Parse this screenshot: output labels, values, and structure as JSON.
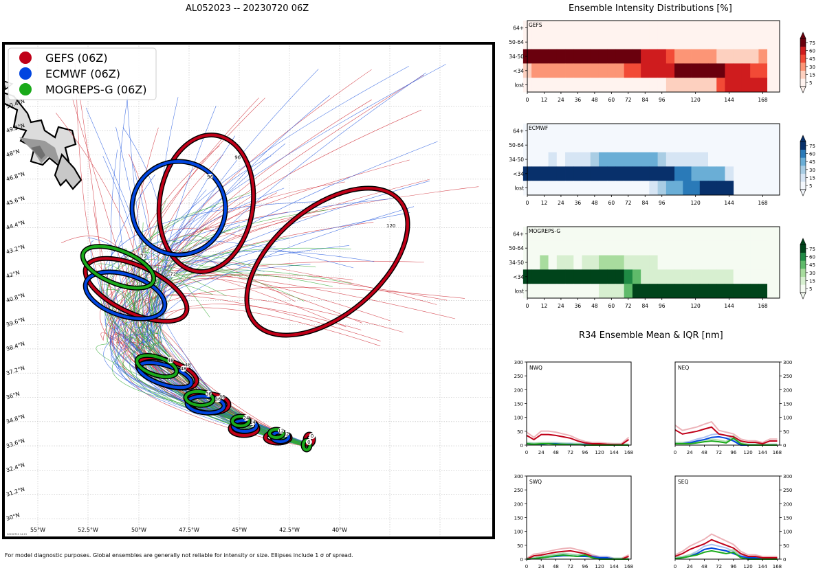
{
  "map": {
    "title": "AL052023 -- 20230720 06Z",
    "stamp": "20230720 14:13",
    "legend": [
      {
        "label": "GEFS (06Z)",
        "color": "#c00018"
      },
      {
        "label": "ECMWF (06Z)",
        "color": "#0045e0"
      },
      {
        "label": "MOGREPS-G (06Z)",
        "color": "#1aaa1a"
      }
    ],
    "lon_labels": [
      "55°W",
      "52.5°W",
      "50°W",
      "47.5°W",
      "45°W",
      "42.5°W",
      "40°W"
    ],
    "lat_labels": [
      "30°N",
      "31.2°N",
      "32.4°N",
      "33.6°N",
      "34.8°N",
      "36°N",
      "37.2°N",
      "38.4°N",
      "39.6°N",
      "40.8°N",
      "42°N",
      "43.2°N",
      "44.4°N",
      "45.6°N",
      "46.8°N",
      "48°N",
      "49.2°N",
      "50.4°N"
    ],
    "ellipse_labels": [
      "0",
      "12",
      "24",
      "36",
      "48",
      "72",
      "96",
      "120"
    ]
  },
  "footnote": "For model diagnostic purposes. Global ensembles are generally not reliable for intensity or size. Ellipses include 1 σ of spread.",
  "intensity": {
    "title": "Ensemble Intensity Distributions [%]",
    "rows": [
      "64+",
      "50-64",
      "34-50",
      "<34",
      "lost"
    ],
    "xticks": [
      "0",
      "12",
      "24",
      "36",
      "48",
      "60",
      "72",
      "84",
      "96",
      "120",
      "144",
      "168"
    ],
    "cbar_ticks": [
      "5",
      "15",
      "30",
      "45",
      "60",
      "75"
    ],
    "panels": [
      {
        "name": "GEFS",
        "palette": "red"
      },
      {
        "name": "ECMWF",
        "palette": "blue"
      },
      {
        "name": "MOGREPS-G",
        "palette": "green"
      }
    ]
  },
  "r34": {
    "title": "R34 Ensemble Mean & IQR [nm]",
    "yticks": [
      "0",
      "50",
      "100",
      "150",
      "200",
      "250",
      "300"
    ],
    "xticks": [
      "0",
      "24",
      "48",
      "72",
      "96",
      "120",
      "144",
      "168"
    ],
    "quadrants": [
      "NWQ",
      "NEQ",
      "SWQ",
      "SEQ"
    ]
  },
  "chart_data": [
    {
      "type": "heatmap",
      "title": "GEFS",
      "x_hours": [
        0,
        6,
        12,
        18,
        24,
        30,
        36,
        42,
        48,
        54,
        60,
        66,
        72,
        78,
        84,
        90,
        96,
        102,
        108,
        114,
        120,
        126,
        132,
        138,
        144,
        150,
        156,
        162,
        168
      ],
      "y_categories": [
        "64+",
        "50-64",
        "34-50",
        "<34",
        "lost"
      ],
      "values_pct": [
        [
          0,
          0,
          0,
          0,
          0,
          0,
          0,
          0,
          0,
          0,
          0,
          0,
          0,
          0,
          0,
          0,
          0,
          0,
          0,
          0,
          0,
          0,
          0,
          0,
          0,
          0,
          0,
          0,
          0
        ],
        [
          0,
          0,
          0,
          0,
          0,
          0,
          0,
          0,
          0,
          0,
          0,
          0,
          0,
          0,
          0,
          0,
          0,
          0,
          0,
          0,
          0,
          0,
          0,
          0,
          0,
          0,
          0,
          0,
          0
        ],
        [
          90,
          80,
          80,
          80,
          85,
          85,
          85,
          85,
          85,
          85,
          85,
          85,
          70,
          65,
          55,
          55,
          55,
          40,
          15,
          15,
          15,
          15,
          15,
          10,
          5,
          5,
          10,
          5,
          15
        ],
        [
          10,
          20,
          20,
          20,
          15,
          15,
          15,
          15,
          15,
          15,
          15,
          15,
          30,
          35,
          45,
          45,
          45,
          55,
          80,
          80,
          80,
          80,
          80,
          60,
          50,
          45,
          45,
          40,
          35
        ],
        [
          0,
          0,
          0,
          0,
          0,
          0,
          0,
          0,
          0,
          0,
          0,
          0,
          0,
          0,
          0,
          0,
          0,
          5,
          5,
          5,
          5,
          5,
          5,
          30,
          45,
          50,
          45,
          55,
          50
        ]
      ],
      "colorbar": [
        5,
        15,
        30,
        45,
        60,
        75
      ]
    },
    {
      "type": "heatmap",
      "title": "ECMWF",
      "x_hours": [
        0,
        6,
        12,
        18,
        24,
        30,
        36,
        42,
        48,
        54,
        60,
        66,
        72,
        78,
        84,
        90,
        96,
        102,
        108,
        114,
        120,
        126,
        132,
        138,
        144
      ],
      "y_categories": [
        "64+",
        "50-64",
        "34-50",
        "<34",
        "lost"
      ],
      "values_pct": [
        [
          0,
          0,
          0,
          0,
          0,
          0,
          0,
          0,
          0,
          0,
          0,
          0,
          0,
          0,
          0,
          0,
          0,
          0,
          0,
          0,
          0,
          0,
          0,
          0,
          0
        ],
        [
          0,
          0,
          0,
          0,
          0,
          0,
          0,
          0,
          0,
          0,
          0,
          0,
          0,
          0,
          0,
          0,
          0,
          0,
          0,
          0,
          0,
          0,
          0,
          0,
          0
        ],
        [
          0,
          0,
          0,
          5,
          0,
          10,
          5,
          10,
          15,
          30,
          40,
          40,
          40,
          40,
          40,
          30,
          15,
          10,
          10,
          10,
          5,
          10,
          0,
          0,
          0
        ],
        [
          100,
          100,
          100,
          100,
          100,
          90,
          95,
          90,
          85,
          70,
          60,
          60,
          60,
          60,
          60,
          65,
          70,
          60,
          55,
          55,
          40,
          30,
          30,
          30,
          10
        ],
        [
          0,
          0,
          0,
          0,
          0,
          0,
          0,
          0,
          0,
          0,
          0,
          0,
          0,
          0,
          0,
          5,
          15,
          30,
          35,
          50,
          55,
          60,
          70,
          70,
          90
        ]
      ],
      "colorbar": [
        5,
        15,
        30,
        45,
        60,
        75
      ]
    },
    {
      "type": "heatmap",
      "title": "MOGREPS-G",
      "x_hours": [
        0,
        6,
        12,
        18,
        24,
        30,
        36,
        42,
        48,
        54,
        60,
        66,
        72,
        78,
        84,
        90,
        96,
        102,
        108,
        114,
        120,
        126,
        132,
        138,
        144,
        150,
        156,
        162,
        168
      ],
      "y_categories": [
        "64+",
        "50-64",
        "34-50",
        "<34",
        "lost"
      ],
      "values_pct": [
        [
          0,
          0,
          0,
          0,
          0,
          0,
          0,
          0,
          0,
          0,
          0,
          0,
          0,
          0,
          0,
          0,
          0,
          0,
          0,
          0,
          0,
          0,
          0,
          0,
          0,
          0,
          0,
          0,
          0
        ],
        [
          0,
          0,
          0,
          0,
          0,
          0,
          0,
          0,
          0,
          0,
          0,
          0,
          0,
          0,
          0,
          0,
          0,
          0,
          0,
          0,
          0,
          0,
          0,
          0,
          0,
          0,
          0,
          0,
          0
        ],
        [
          0,
          0,
          20,
          0,
          10,
          10,
          0,
          10,
          10,
          20,
          20,
          20,
          10,
          10,
          10,
          10,
          0,
          0,
          0,
          0,
          0,
          0,
          0,
          0,
          0,
          0,
          0,
          0,
          0
        ],
        [
          100,
          100,
          80,
          100,
          90,
          90,
          100,
          90,
          90,
          70,
          70,
          70,
          50,
          30,
          10,
          10,
          10,
          10,
          10,
          10,
          10,
          10,
          10,
          10,
          10,
          0,
          0,
          0,
          0
        ],
        [
          0,
          0,
          0,
          0,
          0,
          0,
          0,
          0,
          0,
          10,
          10,
          10,
          40,
          60,
          80,
          80,
          90,
          90,
          90,
          90,
          90,
          90,
          90,
          90,
          90,
          100,
          100,
          100,
          100
        ]
      ],
      "colorbar": [
        5,
        15,
        30,
        45,
        60,
        75
      ]
    },
    {
      "type": "line",
      "title": "NWQ",
      "ylim": [
        0,
        300
      ],
      "x": [
        0,
        12,
        24,
        36,
        48,
        60,
        72,
        84,
        96,
        108,
        120,
        132,
        144,
        156,
        168
      ],
      "series": [
        {
          "name": "GEFS",
          "values": [
            35,
            20,
            38,
            38,
            35,
            30,
            25,
            15,
            8,
            5,
            5,
            3,
            2,
            2,
            20
          ]
        },
        {
          "name": "ECMWF",
          "values": [
            5,
            3,
            3,
            5,
            5,
            3,
            3,
            2,
            2,
            0,
            0,
            0,
            0,
            0,
            0
          ]
        },
        {
          "name": "MOGREPS-G",
          "values": [
            5,
            3,
            5,
            5,
            3,
            3,
            2,
            2,
            0,
            0,
            0,
            0,
            0,
            0,
            0
          ]
        }
      ]
    },
    {
      "type": "line",
      "title": "NEQ",
      "ylim": [
        0,
        300
      ],
      "x": [
        0,
        12,
        24,
        36,
        48,
        60,
        72,
        84,
        96,
        108,
        120,
        132,
        144,
        156,
        168
      ],
      "series": [
        {
          "name": "GEFS",
          "values": [
            55,
            40,
            45,
            50,
            58,
            65,
            40,
            35,
            30,
            15,
            10,
            10,
            5,
            15,
            15
          ]
        },
        {
          "name": "ECMWF",
          "values": [
            5,
            5,
            8,
            15,
            20,
            28,
            30,
            25,
            15,
            0,
            0,
            0,
            0,
            0,
            0
          ]
        },
        {
          "name": "MOGREPS-G",
          "values": [
            5,
            5,
            5,
            8,
            12,
            15,
            12,
            8,
            25,
            5,
            0,
            0,
            0,
            0,
            0
          ]
        }
      ]
    },
    {
      "type": "line",
      "title": "SWQ",
      "ylim": [
        0,
        300
      ],
      "x": [
        0,
        12,
        24,
        36,
        48,
        60,
        72,
        84,
        96,
        108,
        120,
        132,
        144,
        156,
        168
      ],
      "series": [
        {
          "name": "GEFS",
          "values": [
            0,
            12,
            15,
            20,
            25,
            28,
            30,
            25,
            20,
            10,
            5,
            5,
            0,
            0,
            10
          ]
        },
        {
          "name": "ECMWF",
          "values": [
            0,
            2,
            5,
            8,
            10,
            12,
            12,
            10,
            10,
            8,
            5,
            5,
            0,
            0,
            0
          ]
        },
        {
          "name": "MOGREPS-G",
          "values": [
            0,
            2,
            5,
            8,
            12,
            15,
            12,
            10,
            15,
            5,
            0,
            0,
            0,
            0,
            0
          ]
        }
      ]
    },
    {
      "type": "line",
      "title": "SEQ",
      "ylim": [
        0,
        300
      ],
      "x": [
        0,
        12,
        24,
        36,
        48,
        60,
        72,
        84,
        96,
        108,
        120,
        132,
        144,
        156,
        168
      ],
      "series": [
        {
          "name": "GEFS",
          "values": [
            10,
            20,
            35,
            45,
            55,
            70,
            60,
            50,
            40,
            20,
            10,
            10,
            5,
            5,
            5
          ]
        },
        {
          "name": "ECMWF",
          "values": [
            2,
            5,
            10,
            20,
            35,
            40,
            35,
            30,
            20,
            10,
            5,
            5,
            0,
            0,
            0
          ]
        },
        {
          "name": "MOGREPS-G",
          "values": [
            2,
            5,
            10,
            15,
            25,
            30,
            25,
            20,
            25,
            5,
            0,
            0,
            0,
            0,
            0
          ]
        }
      ]
    }
  ]
}
